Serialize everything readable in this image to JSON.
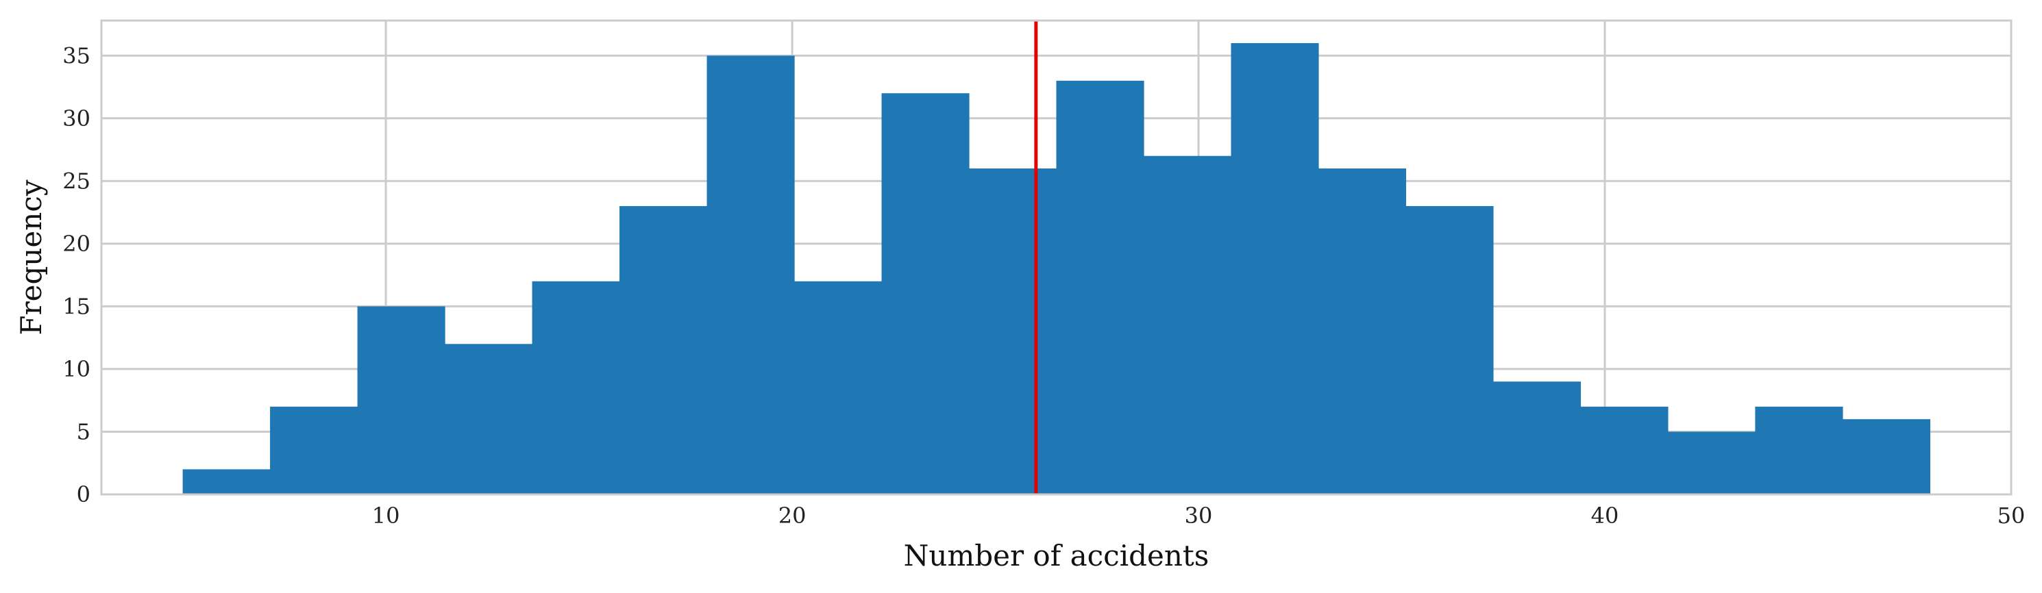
{
  "chart_data": {
    "type": "bar",
    "histogram": true,
    "xlabel": "Number of accidents",
    "ylabel": "Frequency",
    "xlim": [
      3,
      50
    ],
    "ylim": [
      0,
      37.8
    ],
    "xticks": [
      10,
      20,
      30,
      40,
      50
    ],
    "yticks": [
      0,
      5,
      10,
      15,
      20,
      25,
      30,
      35
    ],
    "grid": true,
    "bar_color": "#1f77b4",
    "bin_edges": [
      5,
      7.15,
      9.3,
      11.45,
      13.6,
      15.75,
      17.9,
      20.05,
      22.2,
      24.35,
      26.5,
      28.65,
      30.8,
      32.95,
      35.1,
      37.25,
      39.4,
      41.55,
      43.7,
      45.85,
      48
    ],
    "values": [
      2,
      7,
      15,
      12,
      17,
      23,
      35,
      17,
      32,
      26,
      33,
      27,
      36,
      26,
      23,
      9,
      7,
      5,
      7,
      6
    ],
    "reference_line": {
      "x": 26.0,
      "color": "#e00000"
    }
  }
}
